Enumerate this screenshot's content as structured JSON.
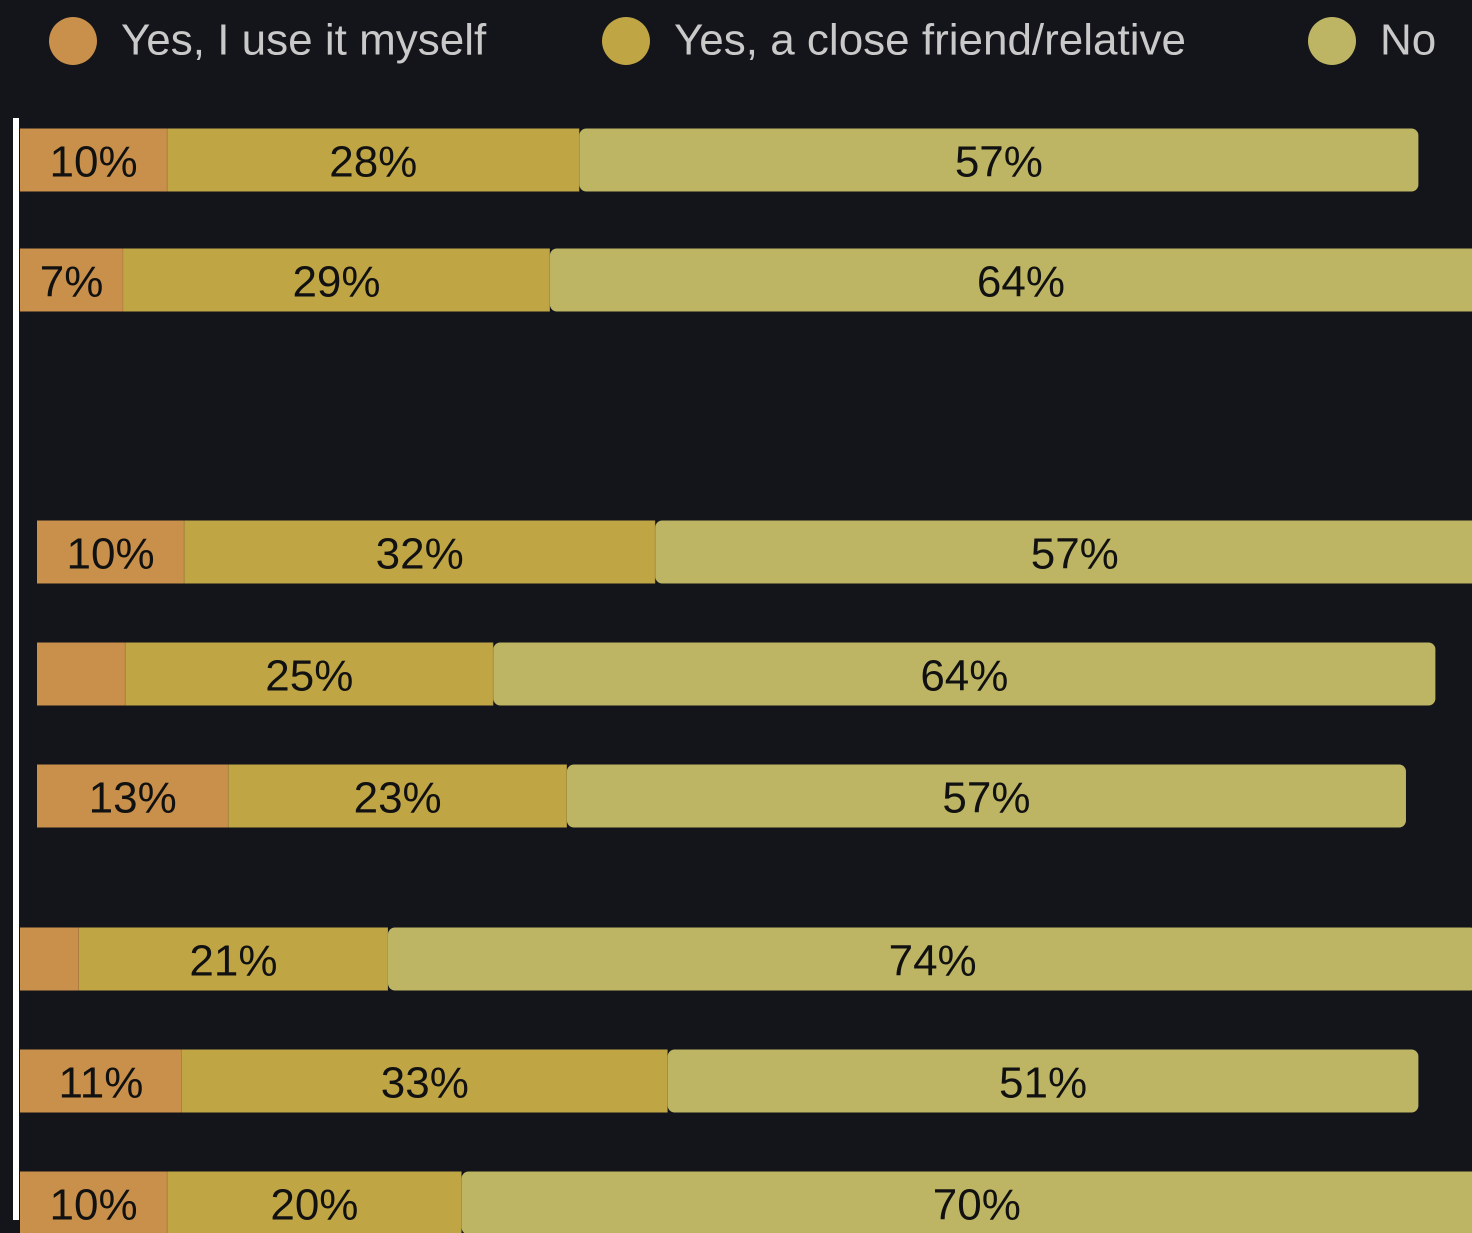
{
  "chart_data": {
    "type": "stacked-bar-horizontal",
    "series": [
      {
        "name": "Yes, I use it myself",
        "color": "#c8904a",
        "values": [
          10,
          7,
          10,
          6,
          13,
          4,
          11,
          10
        ],
        "value_labels": [
          "10%",
          "7%",
          "10%",
          null,
          "13%",
          null,
          "11%",
          "10%"
        ]
      },
      {
        "name": "Yes, a close friend/relative",
        "color": "#c0a545",
        "values": [
          28,
          29,
          32,
          25,
          23,
          21,
          33,
          20
        ],
        "value_labels": [
          "28%",
          "29%",
          "32%",
          "25%",
          "23%",
          "21%",
          "33%",
          "20%"
        ]
      },
      {
        "name": "No",
        "color": "#bdb563",
        "values": [
          57,
          64,
          57,
          64,
          57,
          74,
          51,
          70
        ],
        "value_labels": [
          "57%",
          "64%",
          "57%",
          "64%",
          "57%",
          "74%",
          "51%",
          "70%"
        ]
      }
    ],
    "xlim": [
      0,
      100
    ]
  }
}
